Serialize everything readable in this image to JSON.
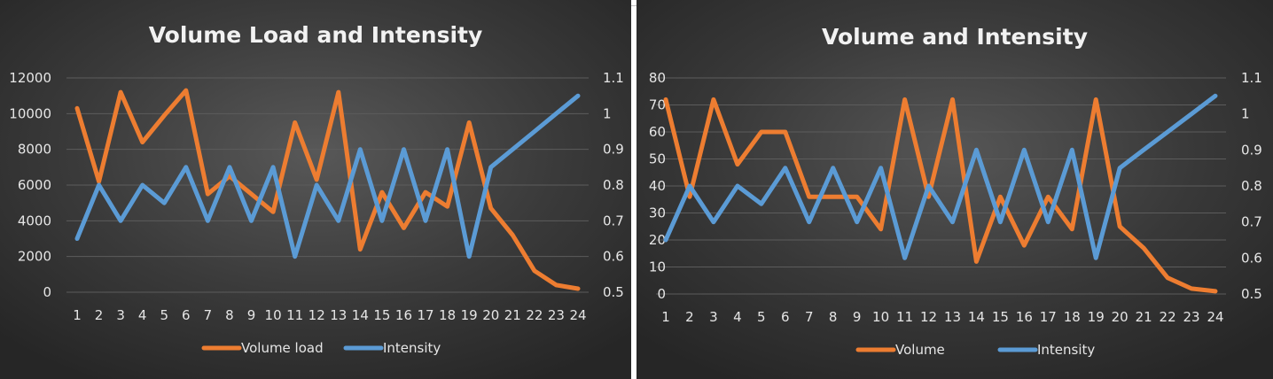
{
  "chart_data": [
    {
      "type": "line",
      "title": "Volume Load and Intensity",
      "categories": [
        "1",
        "2",
        "3",
        "4",
        "5",
        "6",
        "7",
        "8",
        "9",
        "10",
        "11",
        "12",
        "13",
        "14",
        "15",
        "16",
        "17",
        "18",
        "19",
        "20",
        "21",
        "22",
        "23",
        "24"
      ],
      "y_left_ticks": [
        "12000",
        "10000",
        "8000",
        "6000",
        "4000",
        "2000",
        "0"
      ],
      "y_right_ticks": [
        "1.1",
        "1",
        "0.9",
        "0.8",
        "0.7",
        "0.6",
        "0.5"
      ],
      "ylim_left": [
        0,
        12000
      ],
      "ylim_right": [
        0.5,
        1.1
      ],
      "series": [
        {
          "name": "Volume load",
          "axis": "left",
          "color": "#ed7d31",
          "values": [
            10300,
            6200,
            11200,
            8400,
            9900,
            11300,
            5500,
            6500,
            5500,
            4500,
            9500,
            6300,
            11200,
            2400,
            5600,
            3600,
            5600,
            4800,
            9500,
            4700,
            3200,
            1200,
            400,
            200
          ]
        },
        {
          "name": "Intensity",
          "axis": "right",
          "color": "#5b9bd5",
          "values": [
            0.65,
            0.8,
            0.7,
            0.8,
            0.75,
            0.85,
            0.7,
            0.85,
            0.7,
            0.85,
            0.6,
            0.8,
            0.7,
            0.9,
            0.7,
            0.9,
            0.7,
            0.9,
            0.6,
            0.85,
            0.9,
            0.95,
            1.0,
            1.05
          ]
        }
      ],
      "legend_position": "bottom",
      "grid": true
    },
    {
      "type": "line",
      "title": "Volume and Intensity",
      "categories": [
        "1",
        "2",
        "3",
        "4",
        "5",
        "6",
        "7",
        "8",
        "9",
        "10",
        "11",
        "12",
        "13",
        "14",
        "15",
        "16",
        "17",
        "18",
        "19",
        "20",
        "21",
        "22",
        "23",
        "24"
      ],
      "y_left_ticks": [
        "80",
        "70",
        "60",
        "50",
        "40",
        "30",
        "20",
        "10",
        "0"
      ],
      "y_right_ticks": [
        "1.1",
        "1",
        "0.9",
        "0.8",
        "0.7",
        "0.6",
        "0.5"
      ],
      "ylim_left": [
        0,
        80
      ],
      "ylim_right": [
        0.5,
        1.1
      ],
      "series": [
        {
          "name": "Volume",
          "axis": "left",
          "color": "#ed7d31",
          "values": [
            72,
            36,
            72,
            48,
            60,
            60,
            36,
            36,
            36,
            24,
            72,
            36,
            72,
            12,
            36,
            18,
            36,
            24,
            72,
            25,
            17,
            6,
            2,
            1
          ]
        },
        {
          "name": "Intensity",
          "axis": "right",
          "color": "#5b9bd5",
          "values": [
            0.65,
            0.8,
            0.7,
            0.8,
            0.75,
            0.85,
            0.7,
            0.85,
            0.7,
            0.85,
            0.6,
            0.8,
            0.7,
            0.9,
            0.7,
            0.9,
            0.7,
            0.9,
            0.6,
            0.85,
            0.9,
            0.95,
            1.0,
            1.05
          ]
        }
      ],
      "legend_position": "bottom",
      "grid": true
    }
  ]
}
